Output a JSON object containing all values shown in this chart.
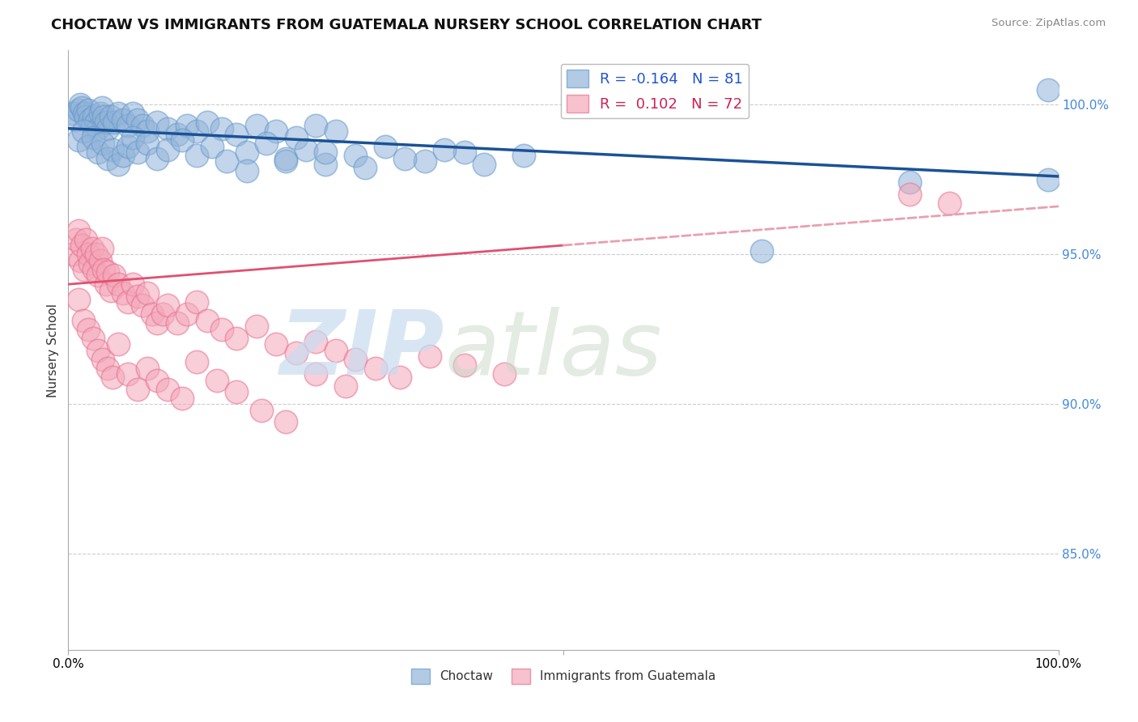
{
  "title": "CHOCTAW VS IMMIGRANTS FROM GUATEMALA NURSERY SCHOOL CORRELATION CHART",
  "source": "Source: ZipAtlas.com",
  "ylabel": "Nursery School",
  "blue_color": "#92B4D9",
  "blue_edge_color": "#6699CC",
  "pink_color": "#F4A7B9",
  "pink_edge_color": "#E87090",
  "blue_line_color": "#1A5296",
  "pink_line_color": "#E05070",
  "pink_dash_color": "#E8A0B0",
  "legend_blue": "R = -0.164   N = 81",
  "legend_pink": "R =  0.102   N = 72",
  "legend_choctaw": "Choctaw",
  "legend_guatemala": "Immigrants from Guatemala",
  "xlim": [
    0.0,
    1.0
  ],
  "ylim": [
    0.818,
    1.018
  ],
  "yticks": [
    0.85,
    0.9,
    0.95,
    1.0
  ],
  "ytick_labels": [
    "85.0%",
    "90.0%",
    "95.0%",
    "100.0%"
  ],
  "blue_line": [
    0.0,
    0.992,
    1.0,
    0.976
  ],
  "pink_line_solid": [
    0.0,
    0.94,
    0.5,
    0.953
  ],
  "pink_line_dash": [
    0.5,
    0.953,
    1.0,
    0.966
  ],
  "hline_top": 1.001,
  "blue_x": [
    0.005,
    0.008,
    0.01,
    0.012,
    0.014,
    0.016,
    0.018,
    0.02,
    0.022,
    0.024,
    0.026,
    0.028,
    0.03,
    0.032,
    0.034,
    0.036,
    0.038,
    0.04,
    0.043,
    0.046,
    0.05,
    0.055,
    0.06,
    0.065,
    0.07,
    0.075,
    0.08,
    0.09,
    0.1,
    0.11,
    0.12,
    0.13,
    0.14,
    0.155,
    0.17,
    0.19,
    0.21,
    0.23,
    0.25,
    0.27,
    0.01,
    0.015,
    0.02,
    0.025,
    0.03,
    0.035,
    0.04,
    0.045,
    0.05,
    0.055,
    0.06,
    0.065,
    0.07,
    0.08,
    0.09,
    0.1,
    0.115,
    0.13,
    0.145,
    0.16,
    0.18,
    0.2,
    0.22,
    0.24,
    0.26,
    0.29,
    0.32,
    0.36,
    0.4,
    0.18,
    0.22,
    0.26,
    0.3,
    0.34,
    0.38,
    0.42,
    0.46,
    0.7,
    0.85,
    0.99,
    0.99
  ],
  "blue_y": [
    0.997,
    0.995,
    0.998,
    1.0,
    0.999,
    0.997,
    0.996,
    0.998,
    0.995,
    0.993,
    0.996,
    0.994,
    0.992,
    0.997,
    0.999,
    0.996,
    0.994,
    0.992,
    0.996,
    0.994,
    0.997,
    0.995,
    0.993,
    0.997,
    0.995,
    0.993,
    0.991,
    0.994,
    0.992,
    0.99,
    0.993,
    0.991,
    0.994,
    0.992,
    0.99,
    0.993,
    0.991,
    0.989,
    0.993,
    0.991,
    0.988,
    0.991,
    0.986,
    0.989,
    0.984,
    0.987,
    0.982,
    0.985,
    0.98,
    0.983,
    0.986,
    0.989,
    0.984,
    0.987,
    0.982,
    0.985,
    0.988,
    0.983,
    0.986,
    0.981,
    0.984,
    0.987,
    0.982,
    0.985,
    0.98,
    0.983,
    0.986,
    0.981,
    0.984,
    0.978,
    0.981,
    0.984,
    0.979,
    0.982,
    0.985,
    0.98,
    0.983,
    0.951,
    0.974,
    0.975,
    1.005
  ],
  "pink_x": [
    0.005,
    0.008,
    0.01,
    0.012,
    0.014,
    0.016,
    0.018,
    0.02,
    0.022,
    0.024,
    0.026,
    0.028,
    0.03,
    0.032,
    0.034,
    0.036,
    0.038,
    0.04,
    0.043,
    0.046,
    0.05,
    0.055,
    0.06,
    0.065,
    0.07,
    0.075,
    0.08,
    0.085,
    0.09,
    0.095,
    0.1,
    0.11,
    0.12,
    0.13,
    0.14,
    0.155,
    0.17,
    0.19,
    0.21,
    0.23,
    0.25,
    0.27,
    0.29,
    0.31,
    0.335,
    0.365,
    0.4,
    0.44,
    0.01,
    0.015,
    0.02,
    0.025,
    0.03,
    0.035,
    0.04,
    0.045,
    0.05,
    0.06,
    0.07,
    0.08,
    0.09,
    0.1,
    0.115,
    0.13,
    0.15,
    0.17,
    0.195,
    0.22,
    0.25,
    0.28,
    0.85,
    0.89
  ],
  "pink_y": [
    0.95,
    0.955,
    0.958,
    0.948,
    0.953,
    0.945,
    0.955,
    0.95,
    0.947,
    0.952,
    0.945,
    0.95,
    0.943,
    0.948,
    0.952,
    0.945,
    0.94,
    0.944,
    0.938,
    0.943,
    0.94,
    0.937,
    0.934,
    0.94,
    0.936,
    0.933,
    0.937,
    0.93,
    0.927,
    0.93,
    0.933,
    0.927,
    0.93,
    0.934,
    0.928,
    0.925,
    0.922,
    0.926,
    0.92,
    0.917,
    0.921,
    0.918,
    0.915,
    0.912,
    0.909,
    0.916,
    0.913,
    0.91,
    0.935,
    0.928,
    0.925,
    0.922,
    0.918,
    0.915,
    0.912,
    0.909,
    0.92,
    0.91,
    0.905,
    0.912,
    0.908,
    0.905,
    0.902,
    0.914,
    0.908,
    0.904,
    0.898,
    0.894,
    0.91,
    0.906,
    0.97,
    0.967
  ]
}
